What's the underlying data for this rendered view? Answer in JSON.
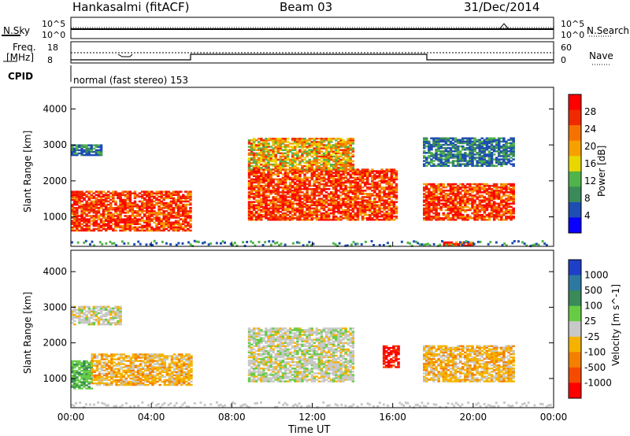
{
  "header": {
    "station": "Hankasalmi (fitACF)",
    "beam": "Beam 03",
    "date": "31/Dec/2014"
  },
  "summary": {
    "nsky_label": "N.Sky",
    "nsky_top": "10^5",
    "nsky_bottom": "10^0",
    "nsearch_label": "N.Search",
    "nsearch_top": "10^5",
    "nsearch_bottom": "10^0",
    "freq_label": "Freq.",
    "freq_unit": "[MHz]",
    "freq_top": "18",
    "freq_bottom": "8",
    "nave_label": "Nave",
    "nave_top": "60",
    "nave_bottom": "0",
    "cpid_label": "CPID",
    "cpid_text": "normal (fast stereo) 153"
  },
  "chart_data": [
    {
      "type": "heatmap",
      "panel": "power",
      "ylabel": "Slant Range [km]",
      "xlabel": "Time UT",
      "x_ticks": [
        "00:00",
        "04:00",
        "08:00",
        "12:00",
        "16:00",
        "20:00",
        "00:00"
      ],
      "xlim_hours": [
        0,
        24
      ],
      "y_ticks": [
        1000,
        2000,
        3000,
        4000
      ],
      "ylim": [
        180,
        4600
      ],
      "colorbar": {
        "label": "Power [dB]",
        "ticks": [
          "4",
          "8",
          "12",
          "16",
          "20",
          "24",
          "28"
        ],
        "range": [
          0,
          30
        ],
        "colors": [
          "#0a00ff",
          "#1e4db3",
          "#3a8a5a",
          "#50b44a",
          "#e8d800",
          "#f7a100",
          "#f57200",
          "#f02a00",
          "#ff0000"
        ]
      },
      "echo_regions": [
        {
          "t0": 0.0,
          "t1": 6.0,
          "r0": 600,
          "r1": 1700,
          "level": "strong"
        },
        {
          "t0": 0.0,
          "t1": 1.5,
          "r0": 2700,
          "r1": 3000,
          "level": "weak"
        },
        {
          "t0": 8.8,
          "t1": 16.2,
          "r0": 900,
          "r1": 2300,
          "level": "strong"
        },
        {
          "t0": 8.8,
          "t1": 14.0,
          "r0": 2300,
          "r1": 3200,
          "level": "medium"
        },
        {
          "t0": 17.5,
          "t1": 22.0,
          "r0": 900,
          "r1": 1900,
          "level": "strong"
        },
        {
          "t0": 17.5,
          "t1": 22.0,
          "r0": 2400,
          "r1": 3200,
          "level": "weak"
        },
        {
          "t0": 18.5,
          "t1": 20.0,
          "r0": 180,
          "r1": 300,
          "level": "strong"
        }
      ]
    },
    {
      "type": "heatmap",
      "panel": "velocity",
      "ylabel": "Slant Range [km]",
      "xlabel": "Time UT",
      "x_ticks": [
        "00:00",
        "04:00",
        "08:00",
        "12:00",
        "16:00",
        "20:00",
        "00:00"
      ],
      "xlim_hours": [
        0,
        24
      ],
      "y_ticks": [
        1000,
        2000,
        3000,
        4000
      ],
      "ylim": [
        180,
        4600
      ],
      "colorbar": {
        "label": "Velocity [m s^-1]",
        "ticks": [
          "1000",
          "500",
          "100",
          "25",
          "-25",
          "-100",
          "-500",
          "-1000"
        ],
        "colors": [
          "#1e40c8",
          "#2d78a0",
          "#3a8a5a",
          "#66cc44",
          "#c8c8c8",
          "#f5b300",
          "#f57f00",
          "#f54a00",
          "#ff0000"
        ]
      },
      "echo_regions": [
        {
          "t0": 0.0,
          "t1": 1.0,
          "r0": 700,
          "r1": 1500,
          "level": "positive"
        },
        {
          "t0": 1.0,
          "t1": 6.0,
          "r0": 800,
          "r1": 1700,
          "level": "negative"
        },
        {
          "t0": 8.8,
          "t1": 14.0,
          "r0": 900,
          "r1": 2400,
          "level": "zero"
        },
        {
          "t0": 15.5,
          "t1": 16.3,
          "r0": 1300,
          "r1": 1900,
          "level": "negative-strong"
        },
        {
          "t0": 17.5,
          "t1": 22.0,
          "r0": 900,
          "r1": 1900,
          "level": "negative"
        },
        {
          "t0": 0.0,
          "t1": 2.5,
          "r0": 2500,
          "r1": 3000,
          "level": "zero"
        }
      ]
    }
  ]
}
